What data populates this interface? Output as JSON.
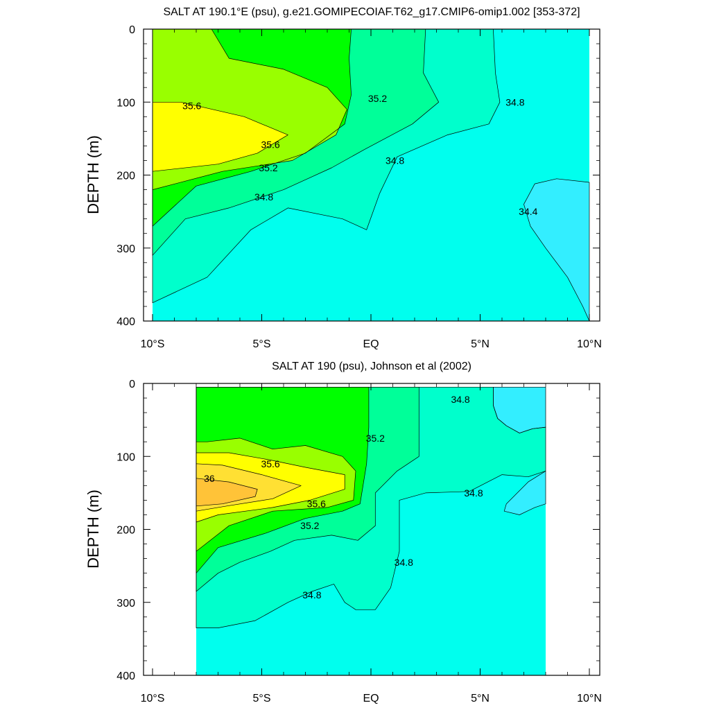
{
  "colors": {
    "c_le_34_4": "#33eeff",
    "c_34_4_34_8": "#00ffee",
    "c_34_8_35_0": "#00ffcc",
    "c_35_0_35_2": "#00ff99",
    "c_35_2_35_4": "#00ff00",
    "c_35_4_35_6": "#99ff00",
    "c_35_6_35_8": "#ffff00",
    "c_35_8_36_0": "#ffe033",
    "c_ge_36_0": "#ffc338"
  },
  "chart_data": [
    {
      "type": "contour",
      "title": "SALT AT 190.1°E (psu), g.e21.GOMIPECOIAF.T62_g17.CMIP6-omip1.002 [353-372]",
      "ylabel": "DEPTH (m)",
      "xlabel": "",
      "xlim": [
        -10,
        10
      ],
      "ylim": [
        400,
        0
      ],
      "y_reversed": true,
      "x_ticks": [
        {
          "value": -10,
          "label": "10°S"
        },
        {
          "value": -5,
          "label": "5°S"
        },
        {
          "value": 0,
          "label": "EQ"
        },
        {
          "value": 5,
          "label": "5°N"
        },
        {
          "value": 10,
          "label": "10°N"
        }
      ],
      "y_ticks": [
        {
          "value": 0,
          "label": "0"
        },
        {
          "value": 100,
          "label": "100"
        },
        {
          "value": 200,
          "label": "200"
        },
        {
          "value": 300,
          "label": "300"
        },
        {
          "value": 400,
          "label": "400"
        }
      ],
      "contour_interval": 0.2,
      "contour_labels": [
        {
          "text": "35.6",
          "x": -8.2,
          "y": 105
        },
        {
          "text": "35.6",
          "x": -4.6,
          "y": 158
        },
        {
          "text": "35.2",
          "x": -4.7,
          "y": 190
        },
        {
          "text": "35.2",
          "x": 0.3,
          "y": 95
        },
        {
          "text": "34.8",
          "x": -4.9,
          "y": 230
        },
        {
          "text": "34.8",
          "x": 1.1,
          "y": 180
        },
        {
          "text": "34.8",
          "x": 6.6,
          "y": 100
        },
        {
          "text": "34.4",
          "x": 7.2,
          "y": 250
        }
      ],
      "regions": [
        {
          "level": "c_34_4_34_8",
          "polygon": [
            [
              -10,
              0
            ],
            [
              10,
              0
            ],
            [
              10,
              400
            ],
            [
              -10,
              400
            ]
          ]
        },
        {
          "level": "c_le_34_4",
          "polygon": [
            [
              10,
              210
            ],
            [
              8.5,
              205
            ],
            [
              7.5,
              212
            ],
            [
              7.0,
              240
            ],
            [
              7.3,
              270
            ],
            [
              8.0,
              300
            ],
            [
              9.0,
              340
            ],
            [
              9.7,
              380
            ],
            [
              10,
              400
            ]
          ]
        },
        {
          "level": "c_34_8_35_0",
          "polygon": [
            [
              -10,
              0
            ],
            [
              5.6,
              0
            ],
            [
              5.7,
              60
            ],
            [
              5.9,
              100
            ],
            [
              5.4,
              130
            ],
            [
              3.5,
              145
            ],
            [
              1.2,
              175
            ],
            [
              0.4,
              225
            ],
            [
              -0.2,
              275
            ],
            [
              -1.3,
              260
            ],
            [
              -3.8,
              245
            ],
            [
              -5.5,
              275
            ],
            [
              -7.5,
              340
            ],
            [
              -10,
              375
            ]
          ]
        },
        {
          "level": "c_35_0_35_2",
          "polygon": [
            [
              -10,
              0
            ],
            [
              2.5,
              0
            ],
            [
              2.4,
              60
            ],
            [
              3.1,
              100
            ],
            [
              1.9,
              130
            ],
            [
              -0.3,
              165
            ],
            [
              -1.8,
              190
            ],
            [
              -4.0,
              220
            ],
            [
              -6.5,
              245
            ],
            [
              -8.5,
              260
            ],
            [
              -10,
              310
            ]
          ]
        },
        {
          "level": "c_35_2_35_4",
          "polygon": [
            [
              -10,
              0
            ],
            [
              -0.9,
              0
            ],
            [
              -1.0,
              40
            ],
            [
              -0.9,
              90
            ],
            [
              -1.2,
              130
            ],
            [
              -3.0,
              170
            ],
            [
              -5.5,
              195
            ],
            [
              -8.0,
              215
            ],
            [
              -10,
              270
            ]
          ]
        },
        {
          "level": "c_35_4_35_6",
          "polygon": [
            [
              -10,
              0
            ],
            [
              -7.3,
              0
            ],
            [
              -6.5,
              40
            ],
            [
              -4.0,
              55
            ],
            [
              -2.0,
              80
            ],
            [
              -1.1,
              110
            ],
            [
              -1.6,
              145
            ],
            [
              -3.6,
              180
            ],
            [
              -6.8,
              195
            ],
            [
              -10,
              220
            ]
          ]
        },
        {
          "level": "c_35_6_35_8",
          "polygon": [
            [
              -10,
              100
            ],
            [
              -8.7,
              100
            ],
            [
              -5.8,
              120
            ],
            [
              -3.8,
              145
            ],
            [
              -5.2,
              170
            ],
            [
              -7.0,
              185
            ],
            [
              -10,
              195
            ]
          ]
        }
      ]
    },
    {
      "type": "contour",
      "title": "SALT AT 190 (psu), Johnson et al (2002)",
      "ylabel": "DEPTH (m)",
      "xlabel": "",
      "xlim": [
        -10,
        10
      ],
      "ylim": [
        400,
        0
      ],
      "y_reversed": true,
      "data_xrange": [
        -8,
        8
      ],
      "x_ticks": [
        {
          "value": -10,
          "label": "10°S"
        },
        {
          "value": -5,
          "label": "5°S"
        },
        {
          "value": 0,
          "label": "EQ"
        },
        {
          "value": 5,
          "label": "5°N"
        },
        {
          "value": 10,
          "label": "10°N"
        }
      ],
      "y_ticks": [
        {
          "value": 0,
          "label": "0"
        },
        {
          "value": 100,
          "label": "100"
        },
        {
          "value": 200,
          "label": "200"
        },
        {
          "value": 300,
          "label": "300"
        },
        {
          "value": 400,
          "label": "400"
        }
      ],
      "contour_interval": 0.2,
      "contour_labels": [
        {
          "text": "35.6",
          "x": -4.6,
          "y": 110
        },
        {
          "text": "36",
          "x": -7.4,
          "y": 130
        },
        {
          "text": "35.6",
          "x": -2.5,
          "y": 165
        },
        {
          "text": "35.2",
          "x": -2.8,
          "y": 195
        },
        {
          "text": "35.2",
          "x": 0.2,
          "y": 75
        },
        {
          "text": "34.8",
          "x": 4.1,
          "y": 22
        },
        {
          "text": "34.8",
          "x": 4.7,
          "y": 150
        },
        {
          "text": "34.8",
          "x": 1.5,
          "y": 245
        },
        {
          "text": "34.8",
          "x": -2.7,
          "y": 290
        }
      ],
      "regions": [
        {
          "level": "c_34_4_34_8",
          "polygon": [
            [
              -8,
              5
            ],
            [
              8,
              5
            ],
            [
              8,
              400
            ],
            [
              -8,
              400
            ]
          ]
        },
        {
          "level": "c_le_34_4",
          "polygon": [
            [
              5.6,
              5
            ],
            [
              8,
              5
            ],
            [
              8,
              60
            ],
            [
              7.4,
              62
            ],
            [
              6.8,
              68
            ],
            [
              6.2,
              58
            ],
            [
              5.8,
              48
            ],
            [
              5.6,
              30
            ]
          ]
        },
        {
          "level": "c_le_34_4",
          "polygon": [
            [
              8,
              120
            ],
            [
              7.2,
              135
            ],
            [
              6.2,
              165
            ],
            [
              6.1,
              175
            ],
            [
              6.8,
              180
            ],
            [
              7.5,
              170
            ],
            [
              8,
              165
            ]
          ]
        },
        {
          "level": "c_34_8_35_0",
          "polygon": [
            [
              -8,
              5
            ],
            [
              5.6,
              5
            ],
            [
              5.6,
              30
            ],
            [
              5.8,
              48
            ],
            [
              6.2,
              58
            ],
            [
              6.8,
              68
            ],
            [
              7.4,
              62
            ],
            [
              8,
              60
            ],
            [
              8,
              120
            ],
            [
              7.2,
              128
            ],
            [
              6.0,
              125
            ],
            [
              4.5,
              148
            ],
            [
              2.5,
              150
            ],
            [
              1.3,
              160
            ],
            [
              1.3,
              230
            ],
            [
              0.9,
              280
            ],
            [
              0.2,
              310
            ],
            [
              -0.7,
              310
            ],
            [
              -1.2,
              300
            ],
            [
              -1.7,
              275
            ],
            [
              -2.7,
              285
            ],
            [
              -3.8,
              300
            ],
            [
              -5.3,
              325
            ],
            [
              -7.0,
              335
            ],
            [
              -8,
              335
            ]
          ]
        },
        {
          "level": "c_35_0_35_2",
          "polygon": [
            [
              -8,
              5
            ],
            [
              2.2,
              5
            ],
            [
              2.2,
              100
            ],
            [
              1.2,
              120
            ],
            [
              0.2,
              150
            ],
            [
              0.2,
              195
            ],
            [
              -0.6,
              215
            ],
            [
              -1.8,
              208
            ],
            [
              -3.5,
              215
            ],
            [
              -4.6,
              230
            ],
            [
              -6.0,
              245
            ],
            [
              -7.0,
              260
            ],
            [
              -8,
              285
            ]
          ]
        },
        {
          "level": "c_35_2_35_4",
          "polygon": [
            [
              -8,
              5
            ],
            [
              -0.1,
              5
            ],
            [
              -0.1,
              60
            ],
            [
              -0.2,
              110
            ],
            [
              -0.5,
              165
            ],
            [
              -1.3,
              175
            ],
            [
              -3.0,
              185
            ],
            [
              -4.8,
              205
            ],
            [
              -7.0,
              225
            ],
            [
              -8,
              260
            ]
          ]
        },
        {
          "level": "c_35_4_35_6",
          "polygon": [
            [
              -8,
              80
            ],
            [
              -7.5,
              80
            ],
            [
              -6.0,
              75
            ],
            [
              -4.5,
              90
            ],
            [
              -3.0,
              85
            ],
            [
              -1.3,
              100
            ],
            [
              -0.7,
              120
            ],
            [
              -0.8,
              160
            ],
            [
              -2.0,
              170
            ],
            [
              -4.5,
              175
            ],
            [
              -6.5,
              195
            ],
            [
              -8,
              230
            ]
          ]
        },
        {
          "level": "c_35_6_35_8",
          "polygon": [
            [
              -8,
              95
            ],
            [
              -6.5,
              95
            ],
            [
              -4.6,
              105
            ],
            [
              -3.0,
              115
            ],
            [
              -1.2,
              125
            ],
            [
              -1.2,
              145
            ],
            [
              -2.8,
              160
            ],
            [
              -4.5,
              170
            ],
            [
              -7.0,
              180
            ],
            [
              -8,
              190
            ]
          ]
        },
        {
          "level": "c_35_8_36_0",
          "polygon": [
            [
              -8,
              110
            ],
            [
              -6.8,
              112
            ],
            [
              -5.0,
              125
            ],
            [
              -3.2,
              140
            ],
            [
              -4.5,
              158
            ],
            [
              -6.6,
              168
            ],
            [
              -8,
              175
            ]
          ]
        },
        {
          "level": "c_ge_36_0",
          "polygon": [
            [
              -8,
              130
            ],
            [
              -6.5,
              135
            ],
            [
              -5.2,
              145
            ],
            [
              -5.3,
              155
            ],
            [
              -6.8,
              165
            ],
            [
              -8,
              168
            ]
          ]
        }
      ]
    }
  ]
}
